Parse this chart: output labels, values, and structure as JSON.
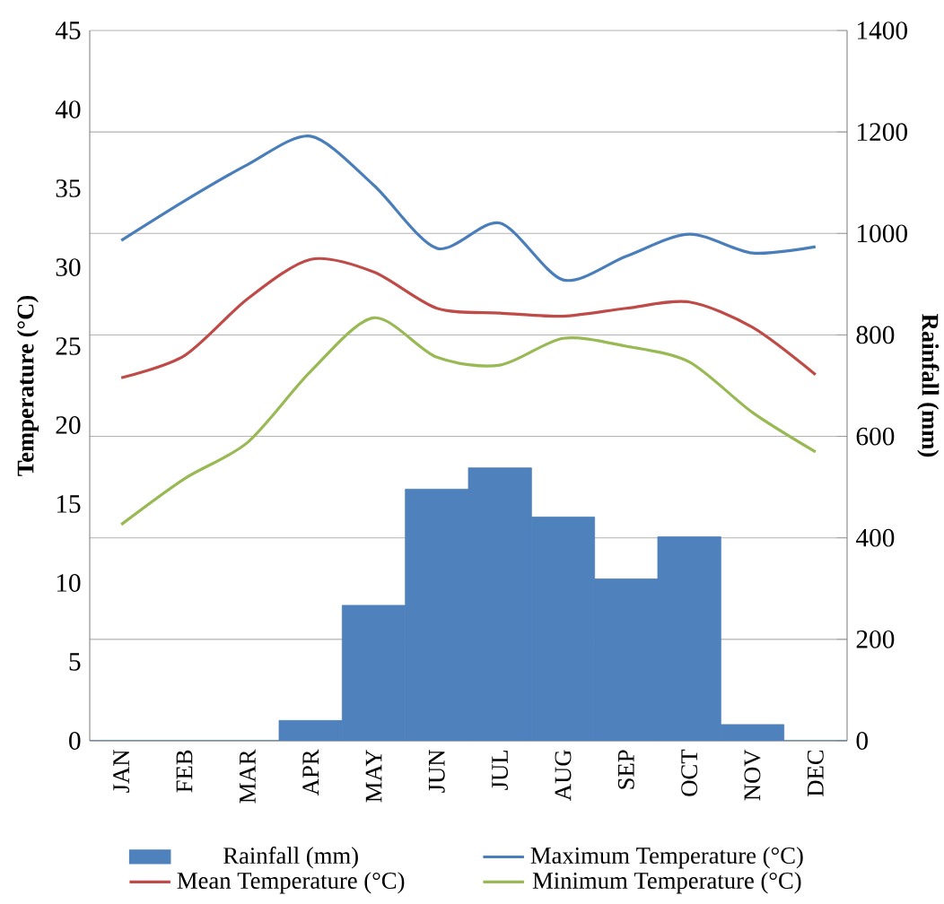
{
  "chart_data": {
    "type": "bar",
    "categories": [
      "JAN",
      "FEB",
      "MAR",
      "APR",
      "MAY",
      "JUN",
      "JUL",
      "AUG",
      "SEP",
      "OCT",
      "NOV",
      "DEC"
    ],
    "ylabel": "Temperature (°C)",
    "y2label": "Rainfall (mm)",
    "ylim": [
      0,
      45
    ],
    "yticks": [
      0,
      5,
      10,
      15,
      20,
      25,
      30,
      35,
      40,
      45
    ],
    "y2lim": [
      0,
      1400
    ],
    "y2ticks": [
      0,
      200,
      400,
      600,
      800,
      1000,
      1200,
      1400
    ],
    "grid": true,
    "legend": "bottom",
    "series": [
      {
        "name": "Rainfall (mm)",
        "axis": "y2",
        "color": "#4f81bd",
        "values": [
          0,
          0,
          0,
          40,
          267,
          496,
          538,
          441,
          319,
          402,
          32,
          0
        ]
      },
      {
        "name": "Maximum Temperature (°C)",
        "type": "line",
        "axis": "y",
        "color": "#4a7ebb",
        "values": [
          31.7,
          34.2,
          36.5,
          38.3,
          35.2,
          31.2,
          32.8,
          29.2,
          30.7,
          32.1,
          30.9,
          31.3
        ]
      },
      {
        "name": "Mean Temperature (°C)",
        "type": "line",
        "axis": "y",
        "color": "#be4b48",
        "values": [
          23.0,
          24.4,
          28.0,
          30.5,
          29.7,
          27.4,
          27.1,
          26.9,
          27.4,
          27.8,
          26.2,
          23.2
        ]
      },
      {
        "name": "Minimum Temperature (°C)",
        "type": "line",
        "axis": "y",
        "color": "#98b954",
        "values": [
          13.7,
          16.6,
          18.9,
          23.4,
          26.8,
          24.3,
          23.8,
          25.5,
          25.0,
          24.0,
          20.8,
          18.3
        ]
      }
    ]
  }
}
